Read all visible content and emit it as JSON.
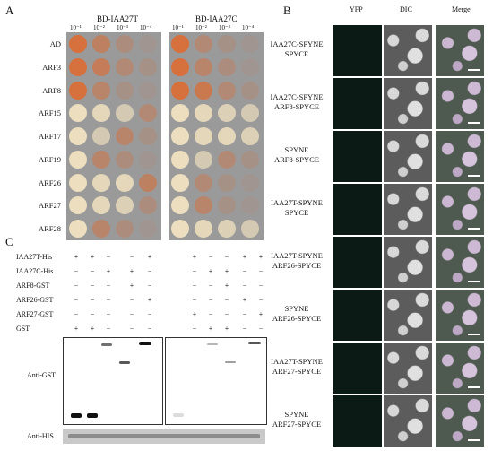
{
  "panels": {
    "a": "A",
    "b": "B",
    "c": "C"
  },
  "panel_a": {
    "plate_titles": [
      "BD-IAA27T",
      "BD-IAA27C"
    ],
    "dilutions": [
      "10⁻¹",
      "10⁻²",
      "10⁻³",
      "10⁻⁴"
    ],
    "rows": [
      "AD",
      "ARF3",
      "ARF8",
      "ARF15",
      "ARF17",
      "ARF19",
      "ARF26",
      "ARF27",
      "ARF28"
    ]
  },
  "panel_b": {
    "columns": [
      "YFP",
      "DIC",
      "Merge"
    ],
    "rows": [
      {
        "line1": "IAA27C-SPYNE",
        "line2": "SPYCE"
      },
      {
        "line1": "IAA27C-SPYNE",
        "line2": "ARF8-SPYCE"
      },
      {
        "line1": "SPYNE",
        "line2": "ARF8-SPYCE"
      },
      {
        "line1": "IAA27T-SPYNE",
        "line2": "SPYCE"
      },
      {
        "line1": "IAA27T-SPYNE",
        "line2": "ARF26-SPYCE"
      },
      {
        "line1": "SPYNE",
        "line2": "ARF26-SPYCE"
      },
      {
        "line1": "IAA27T-SPYNE",
        "line2": "ARF27-SPYCE"
      },
      {
        "line1": "SPYNE",
        "line2": "ARF27-SPYCE"
      }
    ]
  },
  "panel_c": {
    "rows": [
      {
        "label": "IAA27T-His",
        "marks": [
          "+",
          "+",
          "−",
          "−",
          "+",
          "+",
          "−",
          "−",
          "+",
          "+"
        ]
      },
      {
        "label": "IAA27C-His",
        "marks": [
          "−",
          "−",
          "+",
          "+",
          "−",
          "−",
          "+",
          "+",
          "−",
          "−"
        ]
      },
      {
        "label": "ARF8-GST",
        "marks": [
          "−",
          "−",
          "−",
          "+",
          "−",
          "−",
          "−",
          "+",
          "−",
          "−"
        ]
      },
      {
        "label": "ARF26-GST",
        "marks": [
          "−",
          "−",
          "−",
          "−",
          "+",
          "−",
          "−",
          "−",
          "+",
          "−"
        ]
      },
      {
        "label": "ARF27-GST",
        "marks": [
          "−",
          "−",
          "−",
          "−",
          "−",
          "+",
          "−",
          "−",
          "−",
          "+"
        ]
      },
      {
        "label": "GST",
        "marks": [
          "+",
          "+",
          "−",
          "−",
          "−",
          "−",
          "+",
          "+",
          "−",
          "−"
        ]
      }
    ],
    "blot_labels": [
      "Anti-GST",
      "Anti-HIS"
    ]
  }
}
